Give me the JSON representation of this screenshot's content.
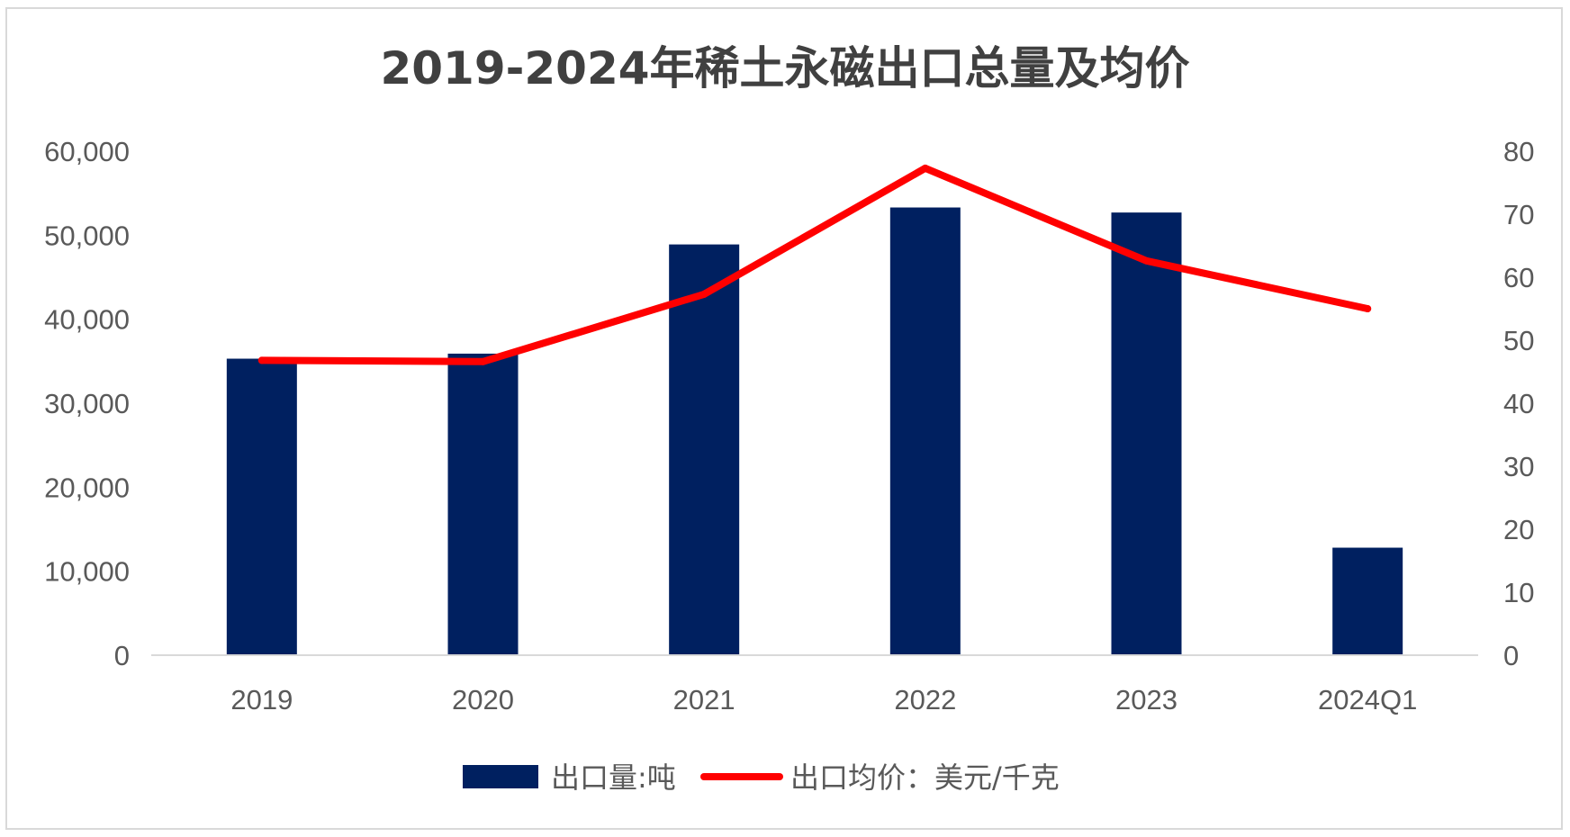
{
  "chart_data": {
    "type": "bar",
    "title": "2019-2024年稀土永磁出口总量及均价",
    "categories": [
      "2019",
      "2020",
      "2021",
      "2022",
      "2023",
      "2024Q1"
    ],
    "series": [
      {
        "name": "出口量:吨",
        "type": "bar",
        "axis": "left",
        "color": "#002060",
        "values": [
          35300,
          35900,
          48900,
          53300,
          52700,
          12800
        ]
      },
      {
        "name": "出口均价：美元/千克",
        "type": "line",
        "axis": "right",
        "color": "#ff0000",
        "values": [
          46.8,
          46.6,
          57.3,
          77.3,
          62.6,
          55.0
        ]
      }
    ],
    "y_left": {
      "lim": [
        0,
        60000
      ],
      "ticks": [
        "0",
        "10,000",
        "20,000",
        "30,000",
        "40,000",
        "50,000",
        "60,000"
      ]
    },
    "y_right": {
      "lim": [
        0,
        80
      ],
      "ticks": [
        "0",
        "10",
        "20",
        "30",
        "40",
        "50",
        "60",
        "70",
        "80"
      ]
    },
    "grid": false,
    "legend_position": "bottom"
  }
}
